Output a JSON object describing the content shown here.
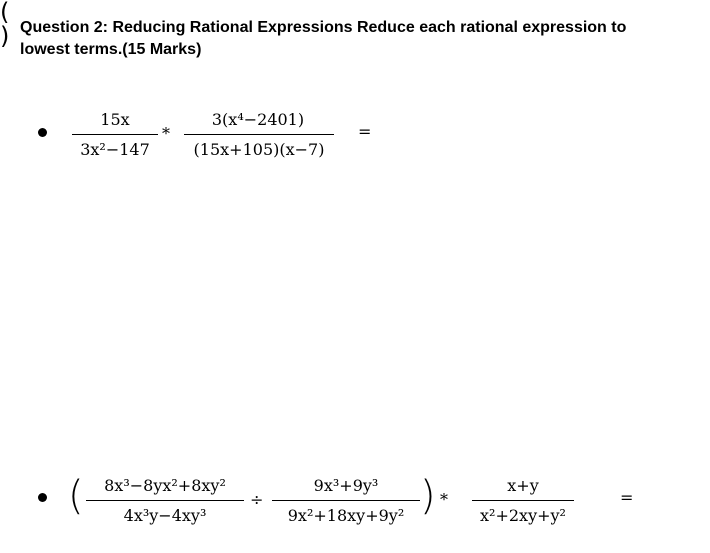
{
  "heading": "Question 2: Reducing Rational Expressions Reduce each rational expression to lowest terms.(15 Marks)",
  "problem1": {
    "frac1_num": "15x",
    "frac1_den": "3x²−147",
    "op": "*",
    "frac2_num": "3(x⁴−2401)",
    "frac2_den": "(15x+105)(x−7)",
    "equals": "="
  },
  "problem2": {
    "frac1_num": "8x³−8yx²+8xy²",
    "frac1_den": "4x³y−4xy³",
    "div_op": "÷",
    "frac2_num": "9x³+9y³",
    "frac2_den": "9x²+18xy+9y²",
    "mul_op": "*",
    "frac3_num": "x+y",
    "frac3_den": "x²+2xy+y²",
    "equals": "="
  }
}
